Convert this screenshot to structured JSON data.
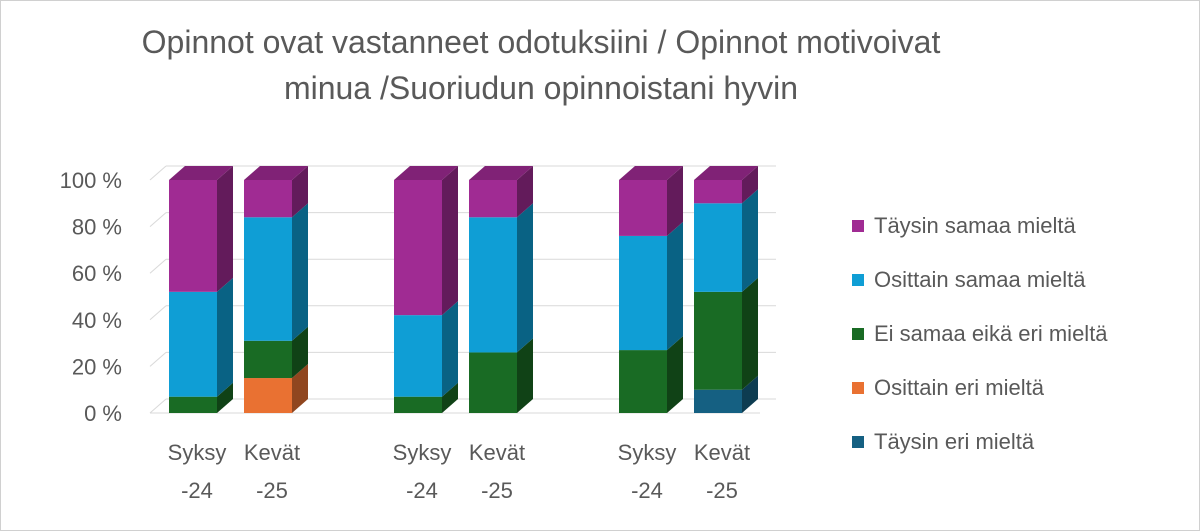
{
  "chart_data": {
    "type": "bar",
    "stacked": true,
    "three_d": true,
    "title": "Opinnot ovat vastanneet odotuksiini / Opinnot motivoivat minua /Suoriudun opinnoistani hyvin",
    "title_lines": [
      "Opinnot ovat vastanneet odotuksiini / Opinnot motivoivat",
      "minua /Suoriudun opinnoistani hyvin"
    ],
    "categories": [
      [
        "Syksy",
        "-24"
      ],
      [
        "Kevät",
        "-25"
      ],
      [
        "Syksy",
        "-24"
      ],
      [
        "Kevät",
        "-25"
      ],
      [
        "Syksy",
        "-24"
      ],
      [
        "Kevät",
        "-25"
      ]
    ],
    "groups": 3,
    "ylim": [
      0,
      100
    ],
    "yticks": [
      "0 %",
      "20 %",
      "40 %",
      "60 %",
      "80 %",
      "100 %"
    ],
    "grid": true,
    "legend_position": "right",
    "series": [
      {
        "name": "Täysin eri mieltä",
        "color": "#156082",
        "values": [
          0,
          0,
          0,
          0,
          0,
          10
        ]
      },
      {
        "name": "Osittain eri mieltä",
        "color": "#e97132",
        "values": [
          0,
          15,
          0,
          0,
          0,
          0
        ]
      },
      {
        "name": "Ei samaa eikä eri mieltä",
        "color": "#196b24",
        "values": [
          7,
          16,
          7,
          26,
          27,
          42
        ]
      },
      {
        "name": "Osittain samaa mieltä",
        "color": "#0f9ed5",
        "values": [
          45,
          53,
          35,
          58,
          49,
          38
        ]
      },
      {
        "name": "Täysin samaa mieltä",
        "color": "#a02b93",
        "values": [
          48,
          16,
          58,
          16,
          24,
          10
        ]
      }
    ]
  }
}
